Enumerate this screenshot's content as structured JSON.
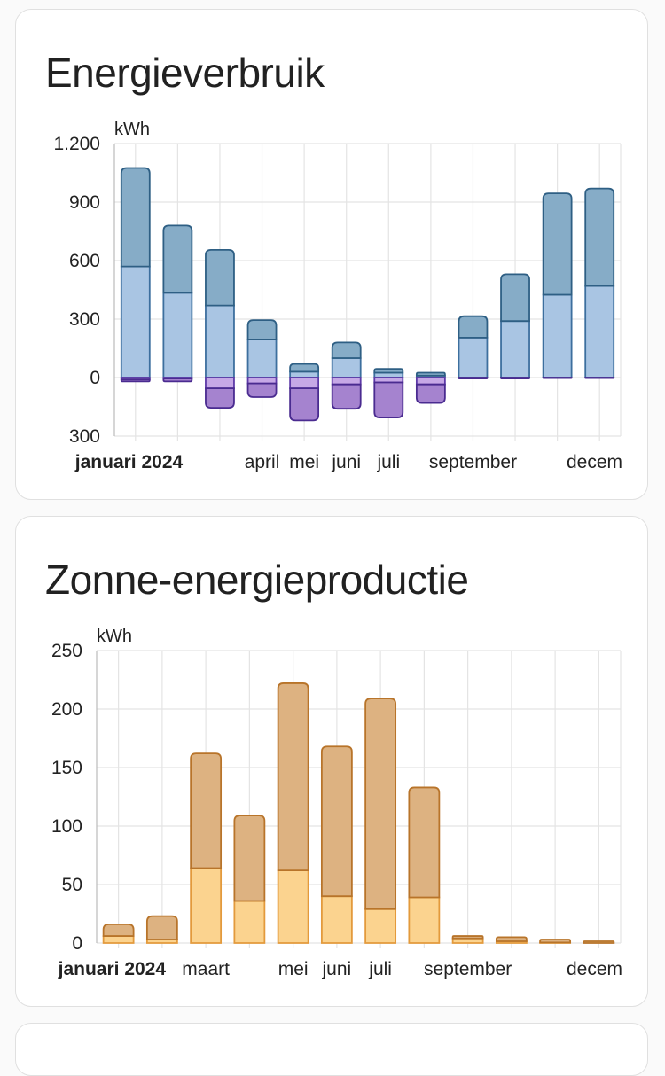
{
  "cards": [
    {
      "title": "Energieverbruik"
    },
    {
      "title": "Zonne-energieproductie"
    }
  ],
  "chart_data": [
    {
      "type": "bar",
      "stacked": true,
      "unit": "kWh",
      "ylim": [
        -300,
        1200
      ],
      "yticks": [
        -300,
        0,
        300,
        600,
        900,
        1200
      ],
      "ytick_labels": [
        "300",
        "0",
        "300",
        "600",
        "900",
        "1.200"
      ],
      "x_labels": [
        {
          "label": "januari 2024",
          "month": 1,
          "bold": true
        },
        {
          "label": "april",
          "month": 4
        },
        {
          "label": "mei",
          "month": 5
        },
        {
          "label": "juni",
          "month": 6
        },
        {
          "label": "juli",
          "month": 7
        },
        {
          "label": "september",
          "month": 9
        },
        {
          "label": "decem",
          "month": 12
        }
      ],
      "months": [
        1,
        2,
        3,
        4,
        5,
        6,
        7,
        8,
        9,
        10,
        11,
        12
      ],
      "series": [
        {
          "values": [
            570,
            435,
            370,
            195,
            30,
            100,
            25,
            10,
            205,
            290,
            425,
            470
          ],
          "color": "#a9c5e3",
          "stroke": "#3d6f9e"
        },
        {
          "values": [
            505,
            345,
            285,
            100,
            40,
            80,
            20,
            15,
            110,
            240,
            520,
            500
          ],
          "color": "#86acc7",
          "stroke": "#2e5f84"
        },
        {
          "values": [
            -10,
            -5,
            -55,
            -30,
            -55,
            -35,
            -25,
            -35,
            0,
            0,
            0,
            0
          ],
          "color": "#c6a8e6",
          "stroke": "#5e3aa8"
        },
        {
          "values": [
            -10,
            -15,
            -100,
            -70,
            -165,
            -125,
            -180,
            -95,
            -5,
            -5,
            -3,
            -3
          ],
          "color": "#a583cf",
          "stroke": "#4a2b90"
        }
      ],
      "grid": true,
      "grid_color": "#e4e4e4"
    },
    {
      "type": "bar",
      "stacked": true,
      "unit": "kWh",
      "ylim": [
        0,
        250
      ],
      "yticks": [
        0,
        50,
        100,
        150,
        200,
        250
      ],
      "ytick_labels": [
        "0",
        "50",
        "100",
        "150",
        "200",
        "250"
      ],
      "x_labels": [
        {
          "label": "januari 2024",
          "month": 1,
          "bold": true
        },
        {
          "label": "maart",
          "month": 3
        },
        {
          "label": "mei",
          "month": 5
        },
        {
          "label": "juni",
          "month": 6
        },
        {
          "label": "juli",
          "month": 7
        },
        {
          "label": "september",
          "month": 9
        },
        {
          "label": "decem",
          "month": 12
        }
      ],
      "months": [
        1,
        2,
        3,
        4,
        5,
        6,
        7,
        8,
        9,
        10,
        11,
        12
      ],
      "series": [
        {
          "values": [
            6,
            3,
            64,
            36,
            62,
            40,
            29,
            39,
            4,
            1.5,
            0.5,
            0
          ],
          "color": "#fbd38f",
          "stroke": "#e39a3c"
        },
        {
          "values": [
            10,
            20,
            98,
            73,
            160,
            128,
            180,
            94,
            2,
            3.5,
            2.5,
            1.5
          ],
          "color": "#ddb281",
          "stroke": "#b8742a"
        }
      ],
      "grid": true,
      "grid_color": "#e4e4e4"
    }
  ]
}
